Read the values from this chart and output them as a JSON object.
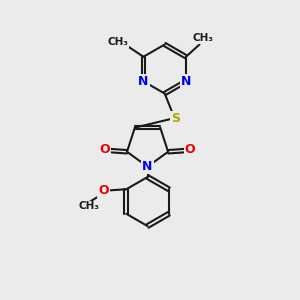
{
  "bg_color": "#ebebeb",
  "bond_color": "#1a1a1a",
  "bond_width": 1.5,
  "atom_colors": {
    "N": "#0000ee",
    "O": "#ee0000",
    "S": "#aaaa00",
    "C": "#1a1a1a"
  },
  "xlim": [
    0,
    10
  ],
  "ylim": [
    0,
    12
  ]
}
